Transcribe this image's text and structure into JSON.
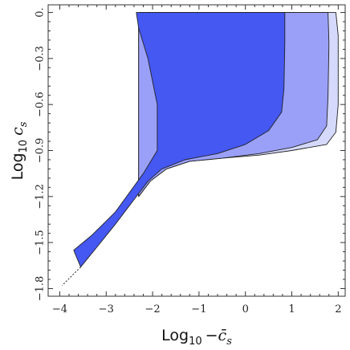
{
  "chart_data": {
    "type": "area",
    "title": "",
    "xlabel": {
      "prefix": "Log",
      "subscript": "10",
      "sign": "−",
      "symbol": "c̄",
      "symbol_subscript": "s"
    },
    "ylabel": {
      "prefix": "Log",
      "subscript": "10",
      "symbol": "c",
      "symbol_subscript": "s"
    },
    "xlim": [
      -4.25,
      2.15
    ],
    "ylim": [
      -1.85,
      0.05
    ],
    "xticks": [
      {
        "value": -4,
        "label": "−4"
      },
      {
        "value": -3,
        "label": "−3"
      },
      {
        "value": -2,
        "label": "−2"
      },
      {
        "value": -1,
        "label": "−1"
      },
      {
        "value": 0,
        "label": "0"
      },
      {
        "value": 1,
        "label": "1"
      },
      {
        "value": 2,
        "label": "2"
      }
    ],
    "yticks": [
      {
        "value": 0,
        "label": "0."
      },
      {
        "value": -0.3,
        "label": "−0.3"
      },
      {
        "value": -0.6,
        "label": "−0.6"
      },
      {
        "value": -0.9,
        "label": "−0.9"
      },
      {
        "value": -1.2,
        "label": "−1.2"
      },
      {
        "value": -1.5,
        "label": "−1.5"
      },
      {
        "value": -1.8,
        "label": "−1.8"
      }
    ],
    "grid": false,
    "legend": "none",
    "series": [
      {
        "color": "#d5d9fb",
        "points": [
          [
            -2.3,
            0
          ],
          [
            1.95,
            0
          ],
          [
            2.0,
            -0.15
          ],
          [
            2.0,
            -0.6
          ],
          [
            1.95,
            -0.78
          ],
          [
            1.75,
            -0.86
          ],
          [
            1.0,
            -0.9
          ],
          [
            0.3,
            -0.93
          ],
          [
            -0.5,
            -0.95
          ],
          [
            -1.2,
            -0.97
          ],
          [
            -1.7,
            -1.02
          ],
          [
            -2.05,
            -1.1
          ],
          [
            -2.3,
            -1.2
          ]
        ]
      },
      {
        "color": "#9aa0f8",
        "points": [
          [
            -2.3,
            0
          ],
          [
            1.78,
            0
          ],
          [
            1.8,
            -0.2
          ],
          [
            1.78,
            -0.55
          ],
          [
            1.75,
            -0.74
          ],
          [
            1.55,
            -0.83
          ],
          [
            1.0,
            -0.88
          ],
          [
            0.3,
            -0.92
          ],
          [
            -0.5,
            -0.95
          ],
          [
            -1.2,
            -0.97
          ],
          [
            -1.7,
            -1.02
          ],
          [
            -2.05,
            -1.1
          ],
          [
            -2.3,
            -1.2
          ]
        ]
      },
      {
        "color": "#4558f2",
        "points": [
          [
            -2.35,
            0
          ],
          [
            0.85,
            0
          ],
          [
            0.85,
            -0.2
          ],
          [
            0.83,
            -0.5
          ],
          [
            0.78,
            -0.65
          ],
          [
            0.5,
            -0.77
          ],
          [
            0.0,
            -0.86
          ],
          [
            -0.6,
            -0.92
          ],
          [
            -1.3,
            -0.96
          ],
          [
            -1.8,
            -1.02
          ],
          [
            -2.1,
            -1.1
          ],
          [
            -2.4,
            -1.22
          ],
          [
            -2.8,
            -1.38
          ],
          [
            -3.2,
            -1.53
          ],
          [
            -3.55,
            -1.66
          ],
          [
            -3.7,
            -1.55
          ],
          [
            -3.3,
            -1.45
          ],
          [
            -2.8,
            -1.3
          ],
          [
            -2.2,
            -1.05
          ],
          [
            -1.9,
            -0.9
          ],
          [
            -1.9,
            -0.6
          ],
          [
            -2.1,
            -0.3
          ],
          [
            -2.3,
            -0.1
          ]
        ]
      }
    ],
    "extension_line": {
      "points": [
        [
          -3.55,
          -1.66
        ],
        [
          -3.95,
          -1.78
        ]
      ],
      "style": "dashed"
    }
  }
}
